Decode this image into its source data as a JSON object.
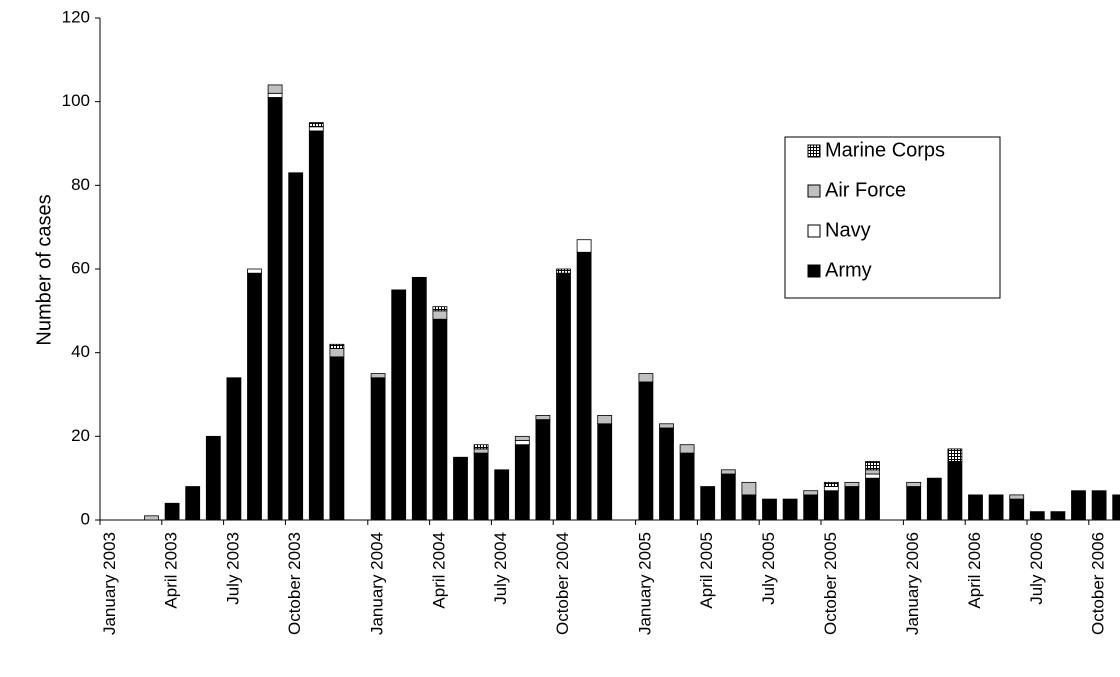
{
  "chart_data": {
    "type": "stacked_bar",
    "y_label": "Number of cases",
    "ylim": [
      0,
      120
    ],
    "yticks": [
      0,
      20,
      40,
      60,
      80,
      100,
      120
    ],
    "legend": "upper right",
    "categories": [
      "January 2003",
      null,
      null,
      "April 2003",
      null,
      null,
      "July 2003",
      null,
      null,
      "October 2003",
      null,
      null,
      null,
      "January 2004",
      null,
      null,
      "April 2004",
      null,
      null,
      "July 2004",
      null,
      null,
      "October 2004",
      null,
      null,
      null,
      "January 2005",
      null,
      null,
      "April 2005",
      null,
      null,
      "July 2005",
      null,
      null,
      "October 2005",
      null,
      null,
      null,
      "January 2006",
      null,
      null,
      "April 2006",
      null,
      null,
      "July 2006",
      null,
      null,
      "October 2006",
      null
    ],
    "series": [
      {
        "name": "Army",
        "color": "#000000",
        "values": [
          0,
          0,
          0,
          4,
          8,
          20,
          34,
          59,
          101,
          83,
          93,
          39,
          null,
          34,
          55,
          58,
          48,
          15,
          16,
          12,
          18,
          24,
          59,
          64,
          23,
          null,
          33,
          22,
          16,
          8,
          11,
          6,
          5,
          5,
          6,
          7,
          8,
          10,
          null,
          8,
          10,
          14,
          6,
          6,
          5,
          2,
          2,
          7,
          7,
          6
        ]
      },
      {
        "name": "Navy",
        "color": "#ffffff",
        "values": [
          0,
          0,
          0,
          0,
          0,
          0,
          0,
          1,
          1,
          0,
          1,
          0,
          null,
          0,
          0,
          0,
          0,
          0,
          0,
          0,
          1,
          0,
          0,
          3,
          0,
          null,
          0,
          0,
          0,
          0,
          0,
          0,
          0,
          0,
          0,
          1,
          0,
          1,
          null,
          0,
          0,
          0,
          0,
          0,
          0,
          0,
          0,
          0,
          0,
          0
        ]
      },
      {
        "name": "Air Force",
        "color": "#c0c0c0",
        "values": [
          0,
          0,
          1,
          0,
          0,
          0,
          0,
          0,
          2,
          0,
          0,
          2,
          null,
          1,
          0,
          0,
          2,
          0,
          1,
          0,
          1,
          1,
          0,
          0,
          2,
          null,
          2,
          1,
          2,
          0,
          1,
          3,
          0,
          0,
          1,
          0,
          1,
          1,
          null,
          1,
          0,
          0,
          0,
          0,
          1,
          0,
          0,
          0,
          0,
          0
        ]
      },
      {
        "name": "Marine Corps",
        "color": "#ffffff",
        "pattern": "grid",
        "values": [
          0,
          0,
          0,
          0,
          0,
          0,
          0,
          0,
          0,
          0,
          1,
          1,
          null,
          0,
          0,
          0,
          1,
          0,
          1,
          0,
          0,
          0,
          1,
          0,
          0,
          null,
          0,
          0,
          0,
          0,
          0,
          0,
          0,
          0,
          0,
          1,
          0,
          2,
          null,
          0,
          0,
          3,
          0,
          0,
          0,
          0,
          0,
          0,
          0,
          0
        ]
      }
    ]
  }
}
